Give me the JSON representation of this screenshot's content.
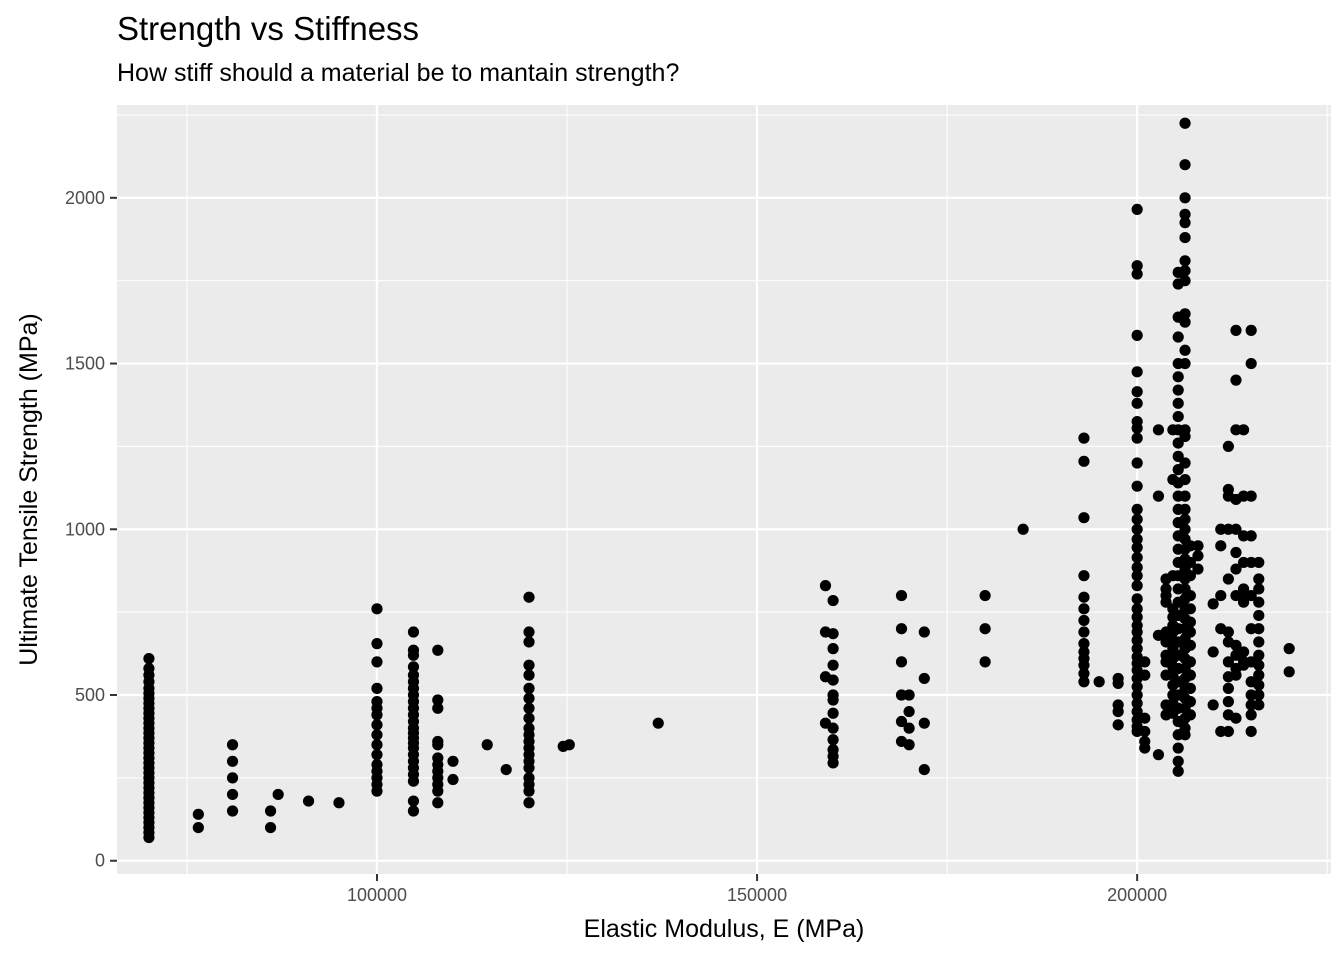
{
  "chart_data": {
    "type": "scatter",
    "title": "Strength vs Stiffness",
    "subtitle": "How stiff should a material be to mantain strength?",
    "xlabel": "Elastic Modulus, E (MPa)",
    "ylabel": "Ultimate Tensile Strength (MPa)",
    "xlim": [
      65800,
      225500
    ],
    "ylim": [
      -40,
      2280
    ],
    "x_ticks": [
      100000,
      150000,
      200000
    ],
    "x_tick_labels": [
      "100000",
      "150000",
      "200000"
    ],
    "y_ticks": [
      0,
      500,
      1000,
      1500,
      2000
    ],
    "y_tick_labels": [
      "0",
      "500",
      "1000",
      "1500",
      "2000"
    ],
    "grid": true,
    "legend": "none",
    "colors": {
      "panel": "#ebebeb",
      "grid": "#ffffff",
      "point": "#000000"
    },
    "points": [
      [
        70000,
        70
      ],
      [
        70000,
        85
      ],
      [
        70000,
        100
      ],
      [
        70000,
        115
      ],
      [
        70000,
        130
      ],
      [
        70000,
        145
      ],
      [
        70000,
        160
      ],
      [
        70000,
        175
      ],
      [
        70000,
        190
      ],
      [
        70000,
        205
      ],
      [
        70000,
        220
      ],
      [
        70000,
        235
      ],
      [
        70000,
        250
      ],
      [
        70000,
        265
      ],
      [
        70000,
        280
      ],
      [
        70000,
        295
      ],
      [
        70000,
        310
      ],
      [
        70000,
        325
      ],
      [
        70000,
        340
      ],
      [
        70000,
        355
      ],
      [
        70000,
        370
      ],
      [
        70000,
        385
      ],
      [
        70000,
        400
      ],
      [
        70000,
        415
      ],
      [
        70000,
        430
      ],
      [
        70000,
        445
      ],
      [
        70000,
        460
      ],
      [
        70000,
        475
      ],
      [
        70000,
        490
      ],
      [
        70000,
        505
      ],
      [
        70000,
        520
      ],
      [
        70000,
        540
      ],
      [
        70000,
        560
      ],
      [
        70000,
        580
      ],
      [
        70000,
        610
      ],
      [
        76500,
        140
      ],
      [
        76500,
        100
      ],
      [
        81000,
        350
      ],
      [
        81000,
        300
      ],
      [
        81000,
        250
      ],
      [
        81000,
        200
      ],
      [
        81000,
        150
      ],
      [
        86000,
        150
      ],
      [
        86000,
        100
      ],
      [
        87000,
        200
      ],
      [
        91000,
        180
      ],
      [
        95000,
        175
      ],
      [
        100000,
        760
      ],
      [
        100000,
        655
      ],
      [
        100000,
        600
      ],
      [
        100000,
        520
      ],
      [
        100000,
        480
      ],
      [
        100000,
        460
      ],
      [
        100000,
        440
      ],
      [
        100000,
        410
      ],
      [
        100000,
        380
      ],
      [
        100000,
        350
      ],
      [
        100000,
        320
      ],
      [
        100000,
        290
      ],
      [
        100000,
        270
      ],
      [
        100000,
        250
      ],
      [
        100000,
        230
      ],
      [
        100000,
        210
      ],
      [
        104800,
        690
      ],
      [
        104800,
        635
      ],
      [
        104800,
        620
      ],
      [
        104800,
        585
      ],
      [
        104800,
        560
      ],
      [
        104800,
        540
      ],
      [
        104800,
        520
      ],
      [
        104800,
        500
      ],
      [
        104800,
        480
      ],
      [
        104800,
        460
      ],
      [
        104800,
        440
      ],
      [
        104800,
        420
      ],
      [
        104800,
        400
      ],
      [
        104800,
        385
      ],
      [
        104800,
        370
      ],
      [
        104800,
        355
      ],
      [
        104800,
        340
      ],
      [
        104800,
        320
      ],
      [
        104800,
        300
      ],
      [
        104800,
        280
      ],
      [
        104800,
        260
      ],
      [
        104800,
        240
      ],
      [
        104800,
        180
      ],
      [
        104800,
        150
      ],
      [
        108000,
        635
      ],
      [
        108000,
        485
      ],
      [
        108000,
        460
      ],
      [
        108000,
        360
      ],
      [
        108000,
        350
      ],
      [
        108000,
        310
      ],
      [
        108000,
        290
      ],
      [
        108000,
        270
      ],
      [
        108000,
        250
      ],
      [
        108000,
        230
      ],
      [
        108000,
        210
      ],
      [
        108000,
        175
      ],
      [
        110000,
        300
      ],
      [
        110000,
        245
      ],
      [
        114500,
        350
      ],
      [
        117000,
        275
      ],
      [
        120000,
        795
      ],
      [
        120000,
        690
      ],
      [
        120000,
        660
      ],
      [
        120000,
        590
      ],
      [
        120000,
        560
      ],
      [
        120000,
        520
      ],
      [
        120000,
        490
      ],
      [
        120000,
        460
      ],
      [
        120000,
        430
      ],
      [
        120000,
        400
      ],
      [
        120000,
        380
      ],
      [
        120000,
        360
      ],
      [
        120000,
        340
      ],
      [
        120000,
        320
      ],
      [
        120000,
        300
      ],
      [
        120000,
        280
      ],
      [
        120000,
        250
      ],
      [
        120000,
        230
      ],
      [
        120000,
        210
      ],
      [
        120000,
        175
      ],
      [
        124500,
        345
      ],
      [
        125300,
        350
      ],
      [
        137000,
        415
      ],
      [
        159000,
        830
      ],
      [
        160000,
        785
      ],
      [
        159000,
        690
      ],
      [
        160000,
        685
      ],
      [
        160000,
        640
      ],
      [
        160000,
        590
      ],
      [
        159000,
        555
      ],
      [
        160000,
        545
      ],
      [
        160000,
        500
      ],
      [
        160000,
        485
      ],
      [
        160000,
        445
      ],
      [
        159000,
        415
      ],
      [
        160000,
        400
      ],
      [
        160000,
        365
      ],
      [
        160000,
        335
      ],
      [
        160000,
        315
      ],
      [
        160000,
        295
      ],
      [
        169000,
        800
      ],
      [
        169000,
        700
      ],
      [
        169000,
        600
      ],
      [
        169000,
        500
      ],
      [
        169000,
        420
      ],
      [
        169000,
        360
      ],
      [
        170000,
        500
      ],
      [
        170000,
        450
      ],
      [
        170000,
        400
      ],
      [
        170000,
        350
      ],
      [
        172000,
        690
      ],
      [
        172000,
        550
      ],
      [
        172000,
        415
      ],
      [
        172000,
        275
      ],
      [
        180000,
        800
      ],
      [
        180000,
        700
      ],
      [
        180000,
        600
      ],
      [
        185000,
        1000
      ],
      [
        193000,
        1275
      ],
      [
        193000,
        1205
      ],
      [
        193000,
        1035
      ],
      [
        193000,
        860
      ],
      [
        193000,
        795
      ],
      [
        193000,
        760
      ],
      [
        193000,
        725
      ],
      [
        193000,
        690
      ],
      [
        193000,
        655
      ],
      [
        193000,
        630
      ],
      [
        193000,
        610
      ],
      [
        193000,
        590
      ],
      [
        193000,
        565
      ],
      [
        193000,
        540
      ],
      [
        195000,
        540
      ],
      [
        197500,
        550
      ],
      [
        197500,
        535
      ],
      [
        197500,
        470
      ],
      [
        197500,
        450
      ],
      [
        197500,
        410
      ],
      [
        200000,
        1965
      ],
      [
        200000,
        1795
      ],
      [
        200000,
        1770
      ],
      [
        200000,
        1585
      ],
      [
        200000,
        1475
      ],
      [
        200000,
        1415
      ],
      [
        200000,
        1380
      ],
      [
        200000,
        1325
      ],
      [
        200000,
        1305
      ],
      [
        200000,
        1275
      ],
      [
        200000,
        1200
      ],
      [
        200000,
        1130
      ],
      [
        200000,
        1060
      ],
      [
        200000,
        1030
      ],
      [
        200000,
        1000
      ],
      [
        200000,
        970
      ],
      [
        200000,
        945
      ],
      [
        200000,
        915
      ],
      [
        200000,
        885
      ],
      [
        200000,
        860
      ],
      [
        200000,
        830
      ],
      [
        200000,
        790
      ],
      [
        200000,
        760
      ],
      [
        200000,
        735
      ],
      [
        200000,
        710
      ],
      [
        200000,
        690
      ],
      [
        200000,
        665
      ],
      [
        200000,
        640
      ],
      [
        200000,
        615
      ],
      [
        200000,
        595
      ],
      [
        200000,
        575
      ],
      [
        200000,
        550
      ],
      [
        200000,
        525
      ],
      [
        200000,
        500
      ],
      [
        200000,
        475
      ],
      [
        200000,
        450
      ],
      [
        200000,
        425
      ],
      [
        200000,
        405
      ],
      [
        200000,
        390
      ],
      [
        201000,
        600
      ],
      [
        201000,
        560
      ],
      [
        201000,
        430
      ],
      [
        201000,
        390
      ],
      [
        201000,
        360
      ],
      [
        201000,
        340
      ],
      [
        202800,
        1300
      ],
      [
        202800,
        1100
      ],
      [
        202800,
        680
      ],
      [
        202800,
        320
      ],
      [
        203800,
        850
      ],
      [
        203800,
        820
      ],
      [
        203800,
        800
      ],
      [
        203800,
        780
      ],
      [
        203800,
        690
      ],
      [
        203800,
        660
      ],
      [
        203800,
        620
      ],
      [
        203800,
        600
      ],
      [
        203800,
        560
      ],
      [
        203800,
        470
      ],
      [
        203800,
        440
      ],
      [
        204700,
        1300
      ],
      [
        204700,
        1150
      ],
      [
        204700,
        860
      ],
      [
        204700,
        760
      ],
      [
        204700,
        735
      ],
      [
        204700,
        710
      ],
      [
        204700,
        690
      ],
      [
        204700,
        665
      ],
      [
        204700,
        640
      ],
      [
        204700,
        610
      ],
      [
        204700,
        585
      ],
      [
        204700,
        560
      ],
      [
        204700,
        530
      ],
      [
        204700,
        500
      ],
      [
        204700,
        475
      ],
      [
        204700,
        445
      ],
      [
        205400,
        1775
      ],
      [
        205400,
        1740
      ],
      [
        205400,
        1640
      ],
      [
        205400,
        1580
      ],
      [
        205400,
        1500
      ],
      [
        205400,
        1460
      ],
      [
        205400,
        1420
      ],
      [
        205400,
        1380
      ],
      [
        205400,
        1340
      ],
      [
        205400,
        1300
      ],
      [
        205400,
        1260
      ],
      [
        205400,
        1220
      ],
      [
        205400,
        1180
      ],
      [
        205400,
        1140
      ],
      [
        205400,
        1100
      ],
      [
        205400,
        1060
      ],
      [
        205400,
        1020
      ],
      [
        205400,
        980
      ],
      [
        205400,
        940
      ],
      [
        205400,
        900
      ],
      [
        205400,
        860
      ],
      [
        205400,
        820
      ],
      [
        205400,
        780
      ],
      [
        205400,
        740
      ],
      [
        205400,
        700
      ],
      [
        205400,
        660
      ],
      [
        205400,
        620
      ],
      [
        205400,
        580
      ],
      [
        205400,
        540
      ],
      [
        205400,
        500
      ],
      [
        205400,
        460
      ],
      [
        205400,
        420
      ],
      [
        205400,
        380
      ],
      [
        205400,
        340
      ],
      [
        205400,
        300
      ],
      [
        205400,
        270
      ],
      [
        206300,
        2225
      ],
      [
        206300,
        2100
      ],
      [
        206300,
        2000
      ],
      [
        206300,
        1950
      ],
      [
        206300,
        1925
      ],
      [
        206300,
        1880
      ],
      [
        206300,
        1810
      ],
      [
        206300,
        1780
      ],
      [
        206300,
        1750
      ],
      [
        206300,
        1650
      ],
      [
        206300,
        1625
      ],
      [
        206300,
        1540
      ],
      [
        206300,
        1500
      ],
      [
        206300,
        1300
      ],
      [
        206300,
        1280
      ],
      [
        206300,
        1200
      ],
      [
        206300,
        1150
      ],
      [
        206300,
        1100
      ],
      [
        206300,
        1060
      ],
      [
        206300,
        1030
      ],
      [
        206300,
        1000
      ],
      [
        206300,
        970
      ],
      [
        206300,
        940
      ],
      [
        206300,
        910
      ],
      [
        206300,
        880
      ],
      [
        206300,
        850
      ],
      [
        206300,
        820
      ],
      [
        206300,
        790
      ],
      [
        206300,
        760
      ],
      [
        206300,
        730
      ],
      [
        206300,
        700
      ],
      [
        206300,
        670
      ],
      [
        206300,
        640
      ],
      [
        206300,
        610
      ],
      [
        206300,
        580
      ],
      [
        206300,
        550
      ],
      [
        206300,
        520
      ],
      [
        206300,
        490
      ],
      [
        206300,
        460
      ],
      [
        206300,
        430
      ],
      [
        206300,
        400
      ],
      [
        206300,
        380
      ],
      [
        207000,
        950
      ],
      [
        207000,
        900
      ],
      [
        207000,
        860
      ],
      [
        207000,
        800
      ],
      [
        207000,
        760
      ],
      [
        207000,
        720
      ],
      [
        207000,
        690
      ],
      [
        207000,
        650
      ],
      [
        207000,
        600
      ],
      [
        207000,
        560
      ],
      [
        207000,
        520
      ],
      [
        207000,
        480
      ],
      [
        207000,
        440
      ],
      [
        208000,
        950
      ],
      [
        208000,
        920
      ],
      [
        208000,
        880
      ],
      [
        210000,
        775
      ],
      [
        210000,
        630
      ],
      [
        210000,
        470
      ],
      [
        211000,
        1000
      ],
      [
        211000,
        950
      ],
      [
        211000,
        800
      ],
      [
        211000,
        700
      ],
      [
        211000,
        390
      ],
      [
        212000,
        1250
      ],
      [
        212000,
        1120
      ],
      [
        212000,
        1100
      ],
      [
        212000,
        1000
      ],
      [
        212000,
        850
      ],
      [
        212000,
        690
      ],
      [
        212000,
        660
      ],
      [
        212000,
        600
      ],
      [
        212000,
        555
      ],
      [
        212000,
        520
      ],
      [
        212000,
        480
      ],
      [
        212000,
        440
      ],
      [
        212000,
        390
      ],
      [
        213000,
        1600
      ],
      [
        213000,
        1450
      ],
      [
        213000,
        1300
      ],
      [
        213000,
        1090
      ],
      [
        213000,
        1000
      ],
      [
        213000,
        930
      ],
      [
        213000,
        880
      ],
      [
        213000,
        800
      ],
      [
        213000,
        650
      ],
      [
        213000,
        620
      ],
      [
        213000,
        580
      ],
      [
        213000,
        560
      ],
      [
        213000,
        430
      ],
      [
        214000,
        1300
      ],
      [
        214000,
        1100
      ],
      [
        214000,
        980
      ],
      [
        214000,
        900
      ],
      [
        214000,
        820
      ],
      [
        214000,
        800
      ],
      [
        214000,
        780
      ],
      [
        214000,
        630
      ],
      [
        214000,
        600
      ],
      [
        214000,
        590
      ],
      [
        215000,
        1600
      ],
      [
        215000,
        1500
      ],
      [
        215000,
        1100
      ],
      [
        215000,
        980
      ],
      [
        215000,
        900
      ],
      [
        215000,
        800
      ],
      [
        215000,
        700
      ],
      [
        215000,
        600
      ],
      [
        215000,
        540
      ],
      [
        215000,
        500
      ],
      [
        215000,
        470
      ],
      [
        215000,
        440
      ],
      [
        215000,
        390
      ],
      [
        216000,
        900
      ],
      [
        216000,
        850
      ],
      [
        216000,
        820
      ],
      [
        216000,
        780
      ],
      [
        216000,
        740
      ],
      [
        216000,
        700
      ],
      [
        216000,
        660
      ],
      [
        216000,
        620
      ],
      [
        216000,
        590
      ],
      [
        216000,
        560
      ],
      [
        216000,
        530
      ],
      [
        216000,
        500
      ],
      [
        216000,
        470
      ],
      [
        220000,
        640
      ],
      [
        220000,
        570
      ]
    ]
  }
}
